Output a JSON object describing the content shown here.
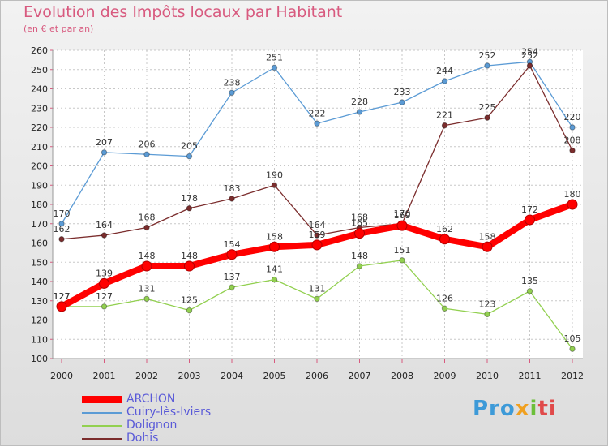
{
  "chart_data": {
    "type": "line",
    "title": "Evolution des Impôts locaux par Habitant",
    "subtitle": "(en € et par an)",
    "x": [
      "2000",
      "2001",
      "2002",
      "2003",
      "2004",
      "2005",
      "2006",
      "2007",
      "2008",
      "2009",
      "2010",
      "2011",
      "2012"
    ],
    "ylim": [
      100,
      260
    ],
    "yticks": [
      100,
      110,
      120,
      130,
      140,
      150,
      160,
      170,
      180,
      190,
      200,
      210,
      220,
      230,
      240,
      250,
      260
    ],
    "series": [
      {
        "name": "ARCHON",
        "color": "#ff0000",
        "values": [
          127,
          139,
          148,
          148,
          154,
          158,
          159,
          165,
          169,
          162,
          158,
          172,
          180
        ]
      },
      {
        "name": "Cuiry-lès-Iviers",
        "color": "#5b9bd5",
        "values": [
          170,
          207,
          206,
          205,
          238,
          251,
          222,
          228,
          233,
          244,
          252,
          254,
          220
        ]
      },
      {
        "name": "Dolignon",
        "color": "#92d050",
        "values": [
          127,
          127,
          131,
          125,
          137,
          141,
          131,
          148,
          151,
          126,
          123,
          135,
          105
        ]
      },
      {
        "name": "Dohis",
        "color": "#7b2d2d",
        "values": [
          162,
          164,
          168,
          178,
          183,
          190,
          164,
          168,
          170,
          221,
          225,
          252,
          208
        ]
      }
    ]
  },
  "logo": {
    "p1": "Pro",
    "p2": "x",
    "p3": "i",
    "p4": "ti"
  }
}
